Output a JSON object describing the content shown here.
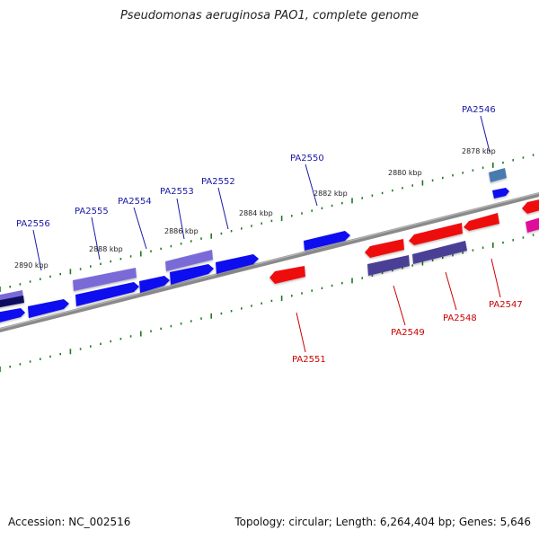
{
  "title": "Pseudomonas aeruginosa PAO1, complete genome",
  "footer": {
    "accession": "Accession: NC_002516",
    "summary": "Topology: circular; Length: 6,264,404 bp; Genes: 5,646"
  },
  "scale_labels": [
    "2878 kbp",
    "2880 kbp",
    "2882 kbp",
    "2884 kbp",
    "2886 kbp",
    "2888 kbp",
    "2890 kbp"
  ],
  "gene_labels": {
    "forward": [
      "PA2546",
      "PA2550",
      "PA2552",
      "PA2553",
      "PA2554",
      "PA2555",
      "PA2556"
    ],
    "reverse": [
      "PA2547",
      "PA2548",
      "PA2549",
      "PA2551"
    ]
  },
  "colors": {
    "forward_label": "#1a1aa6",
    "reverse_label": "#cc0000",
    "backbone": "#888888",
    "tick": "#1f7a1f",
    "gene_blue": "#0a0af0",
    "gene_red": "#ee1111",
    "gene_purple": "#7a6ad8",
    "gene_dark_purple": "#4a3f96",
    "gene_navy": "#101060",
    "gene_steel": "#4a7ab0",
    "gene_magenta": "#e0109a"
  }
}
